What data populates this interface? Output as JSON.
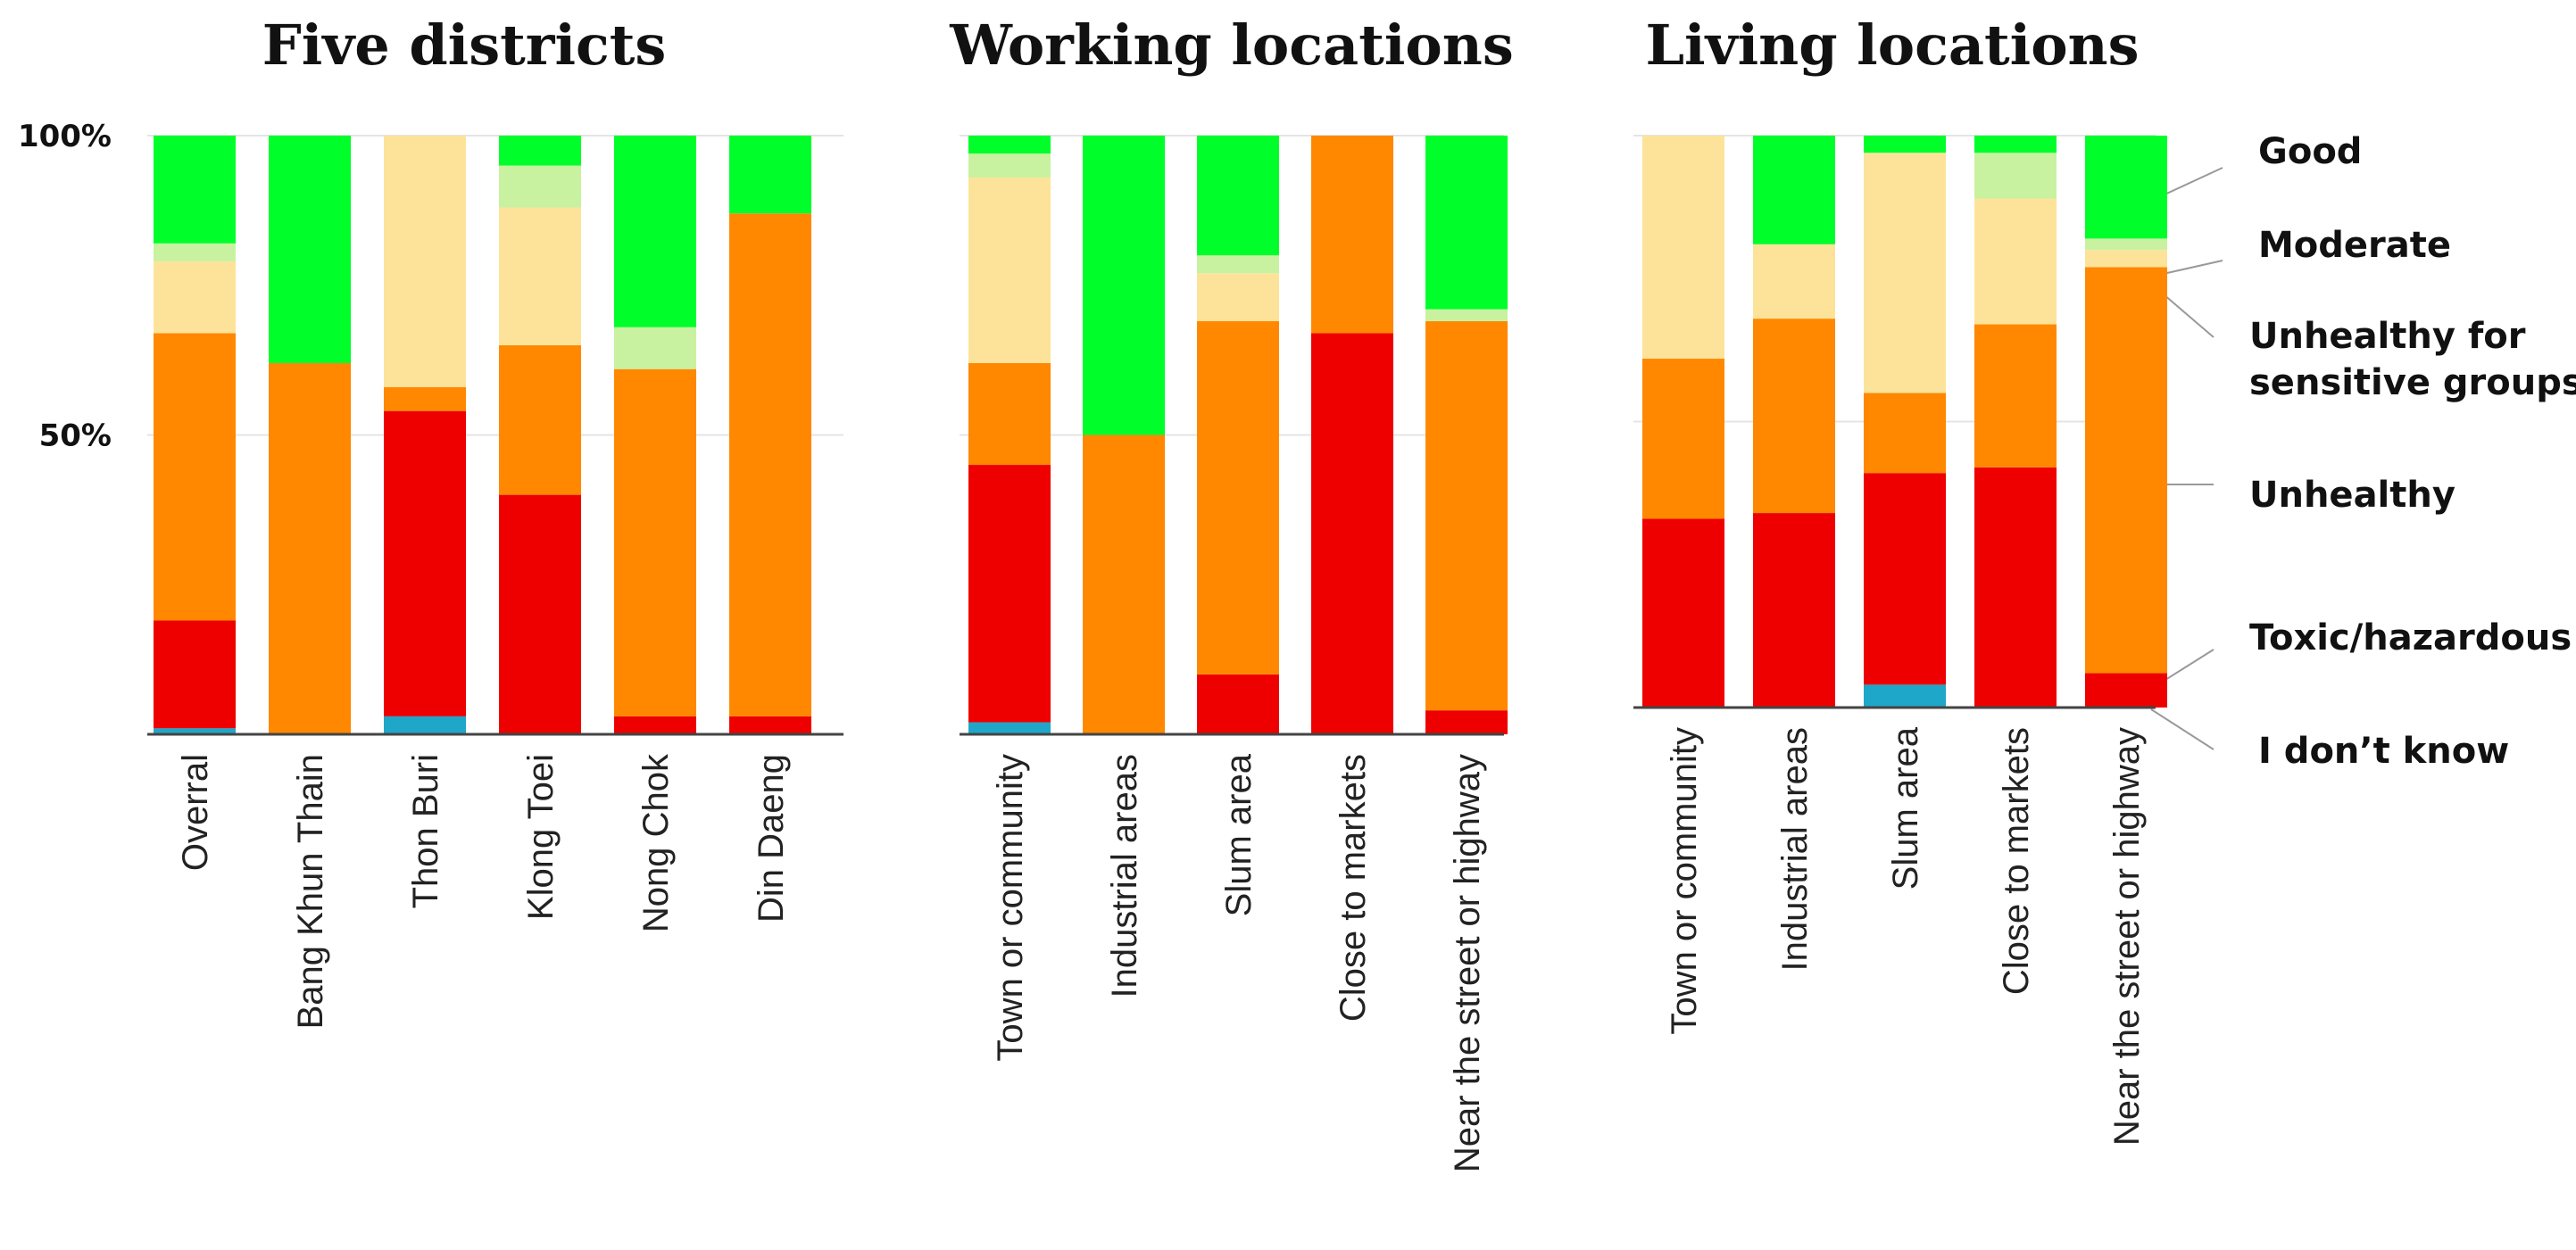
{
  "chart_data": {
    "type": "bar",
    "stacked": true,
    "y_unit": "percent",
    "ylim": [
      0,
      100
    ],
    "yticks": [
      {
        "value": 50,
        "label": "50%"
      },
      {
        "value": 100,
        "label": "100%"
      }
    ],
    "categories_series_order": [
      "I don't know",
      "Toxic/hazardous",
      "Unhealthy",
      "Unhealthy for sensitive groups",
      "Moderate",
      "Good"
    ],
    "legend": [
      {
        "name": "Good",
        "label": "Good",
        "color": "#00ff2a"
      },
      {
        "name": "Moderate",
        "label": "Moderate",
        "color": "#c8f2a0"
      },
      {
        "name": "Unhealthy for sensitive groups",
        "label": "Unhealthy for sensitive groups",
        "label_lines": [
          "Unhealthy for",
          "sensitive groups"
        ],
        "color": "#fde39a"
      },
      {
        "name": "Unhealthy",
        "label": "Unhealthy",
        "color": "#ff8800"
      },
      {
        "name": "Toxic/hazardous",
        "label": "Toxic/hazardous",
        "color": "#ee0000"
      },
      {
        "name": "I don't know",
        "label": "I don’t know",
        "color": "#1ea7c9"
      }
    ],
    "panels": [
      {
        "title": "Five  districts",
        "categories": [
          "Overral",
          "Bang Khun Thain",
          "Thon Buri",
          "Klong Toei",
          "Nong Chok",
          "Din Daeng"
        ],
        "series": [
          {
            "name": "I don't know",
            "values": [
              1,
              0,
              3,
              0,
              0,
              0
            ]
          },
          {
            "name": "Toxic/hazardous",
            "values": [
              18,
              0,
              51,
              40,
              3,
              3
            ]
          },
          {
            "name": "Unhealthy",
            "values": [
              48,
              62,
              4,
              25,
              58,
              84
            ]
          },
          {
            "name": "Unhealthy for sensitive groups",
            "values": [
              12,
              0,
              42,
              23,
              0,
              0
            ]
          },
          {
            "name": "Moderate",
            "values": [
              3,
              0,
              0,
              7,
              7,
              0
            ]
          },
          {
            "name": "Good",
            "values": [
              18,
              38,
              0,
              5,
              32,
              13
            ]
          }
        ]
      },
      {
        "title": "Working locations",
        "categories": [
          "Town or community",
          "Industrial areas",
          "Slum area",
          "Close to markets",
          "Near the street or highway"
        ],
        "series": [
          {
            "name": "I don't know",
            "values": [
              2,
              0,
              0,
              0,
              0
            ]
          },
          {
            "name": "Toxic/hazardous",
            "values": [
              43,
              0,
              10,
              67,
              4
            ]
          },
          {
            "name": "Unhealthy",
            "values": [
              17,
              50,
              59,
              33,
              65
            ]
          },
          {
            "name": "Unhealthy for sensitive groups",
            "values": [
              31,
              0,
              8,
              0,
              0
            ]
          },
          {
            "name": "Moderate",
            "values": [
              4,
              0,
              3,
              0,
              2
            ]
          },
          {
            "name": "Good",
            "values": [
              3,
              50,
              20,
              0,
              29
            ]
          }
        ]
      },
      {
        "title": "Living locations",
        "categories": [
          "Town or community",
          "Industrial areas",
          "Slum area",
          "Close to markets",
          "Near the street or highway"
        ],
        "series": [
          {
            "name": "I don't know",
            "values": [
              0,
              0,
              4,
              0,
              0
            ]
          },
          {
            "name": "Toxic/hazardous",
            "values": [
              33,
              34,
              37,
              42,
              6
            ]
          },
          {
            "name": "Unhealthy",
            "values": [
              28,
              34,
              14,
              25,
              71
            ]
          },
          {
            "name": "Unhealthy for sensitive groups",
            "values": [
              39,
              13,
              42,
              22,
              3
            ]
          },
          {
            "name": "Moderate",
            "values": [
              0,
              0,
              0,
              8,
              2
            ]
          },
          {
            "name": "Good",
            "values": [
              0,
              19,
              3,
              3,
              18
            ]
          }
        ]
      }
    ]
  }
}
